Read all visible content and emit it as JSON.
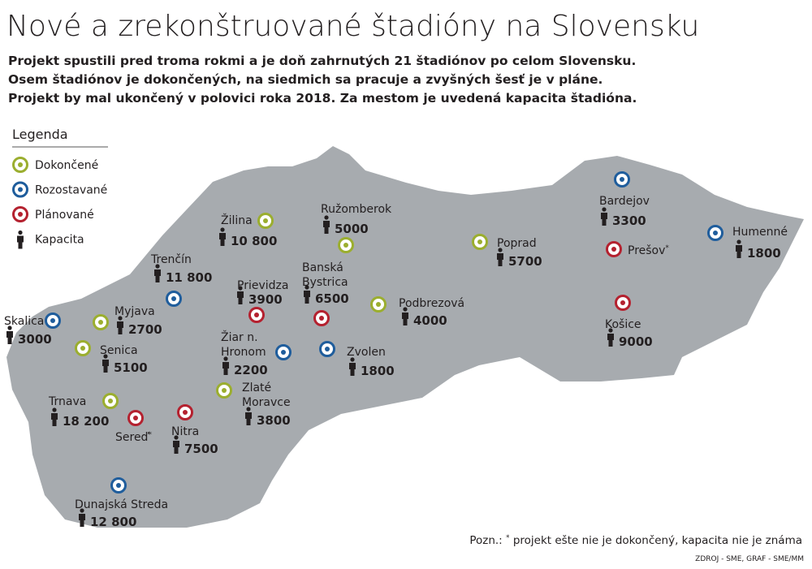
{
  "title": "Nové a zrekonštruované štadióny na Slovensku",
  "subtitle": [
    "Projekt spustili pred troma rokmi a je doň zahrnutých 21 štadiónov po celom Slovensku.",
    "Osem štadiónov je dokončených, na siedmich sa pracuje a zvyšných šesť je v pláne.",
    "Projekt by mal ukončený v polovici roka 2018. Za mestom je uvedená kapacita štadióna."
  ],
  "legend": {
    "title": "Legenda",
    "items": [
      {
        "label": "Dokončené",
        "color": "#9bae2f"
      },
      {
        "label": "Rozostavané",
        "color": "#1f5d9c"
      },
      {
        "label": "Plánované",
        "color": "#b4212f"
      },
      {
        "label": "Kapacita"
      }
    ]
  },
  "stadiums": [
    {
      "name": [
        "Žilina"
      ],
      "capacity": "10 800",
      "color": "#9bae2f"
    },
    {
      "name": [
        "Ružomberok"
      ],
      "capacity": "5000",
      "color": "#9bae2f"
    },
    {
      "name": [
        "Trenčín"
      ],
      "capacity": "11 800",
      "color": "#1f5d9c"
    },
    {
      "name": [
        "Prievidza"
      ],
      "capacity": "3900",
      "color": "#b4212f"
    },
    {
      "name": [
        "Banská",
        "Bystrica"
      ],
      "capacity": "6500",
      "color": "#b4212f"
    },
    {
      "name": [
        "Podbrezová"
      ],
      "capacity": "4000",
      "color": "#9bae2f"
    },
    {
      "name": [
        "Poprad"
      ],
      "capacity": "5700",
      "color": "#9bae2f"
    },
    {
      "name": [
        "Bardejov"
      ],
      "capacity": "3300",
      "color": "#1f5d9c"
    },
    {
      "name": [
        "Prešov"
      ],
      "mark": "*",
      "color": "#b4212f"
    },
    {
      "name": [
        "Humenné"
      ],
      "capacity": "1800",
      "color": "#1f5d9c"
    },
    {
      "name": [
        "Košice"
      ],
      "capacity": "9000",
      "color": "#b4212f"
    },
    {
      "name": [
        "Zvolen"
      ],
      "capacity": "1800",
      "color": "#1f5d9c"
    },
    {
      "name": [
        "Žiar n.",
        "Hronom"
      ],
      "capacity": "2200",
      "color": "#1f5d9c"
    },
    {
      "name": [
        "Zlaté",
        "Moravce"
      ],
      "capacity": "3800",
      "color": "#9bae2f"
    },
    {
      "name": [
        "Skalica"
      ],
      "capacity": "3000",
      "color": "#1f5d9c"
    },
    {
      "name": [
        "Myjava"
      ],
      "capacity": "2700",
      "color": "#9bae2f"
    },
    {
      "name": [
        "Senica"
      ],
      "capacity": "5100",
      "color": "#9bae2f"
    },
    {
      "name": [
        "Trnava"
      ],
      "capacity": "18 200",
      "color": "#9bae2f"
    },
    {
      "name": [
        "Sereď"
      ],
      "mark": "*",
      "color": "#b4212f"
    },
    {
      "name": [
        "Nitra"
      ],
      "capacity": "7500",
      "color": "#b4212f"
    },
    {
      "name": [
        "Dunajská Streda"
      ],
      "capacity": "12 800",
      "color": "#1f5d9c"
    }
  ],
  "note": {
    "prefix": "Pozn.:",
    "mark": "*",
    "text": "projekt ešte nie je dokončený, kapacita nie je známa"
  },
  "source": "ZDROJ - SME, GRAF - SME/MM"
}
